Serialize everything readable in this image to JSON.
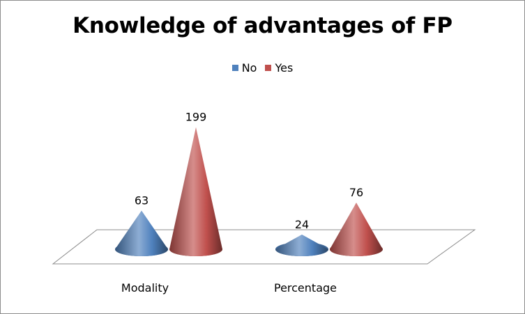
{
  "chart_data": {
    "type": "bar",
    "shape": "cone-3d",
    "title": "Knowledge of advantages of FP",
    "categories": [
      "Modality",
      "Percentage"
    ],
    "series": [
      {
        "name": "No",
        "values": [
          63,
          24
        ],
        "color": "#4f81bd"
      },
      {
        "name": "Yes",
        "values": [
          199,
          76
        ],
        "color": "#c0504d"
      }
    ],
    "data_labels": true,
    "legend_position": "top",
    "grid": false,
    "ylim": [
      0,
      210
    ]
  }
}
